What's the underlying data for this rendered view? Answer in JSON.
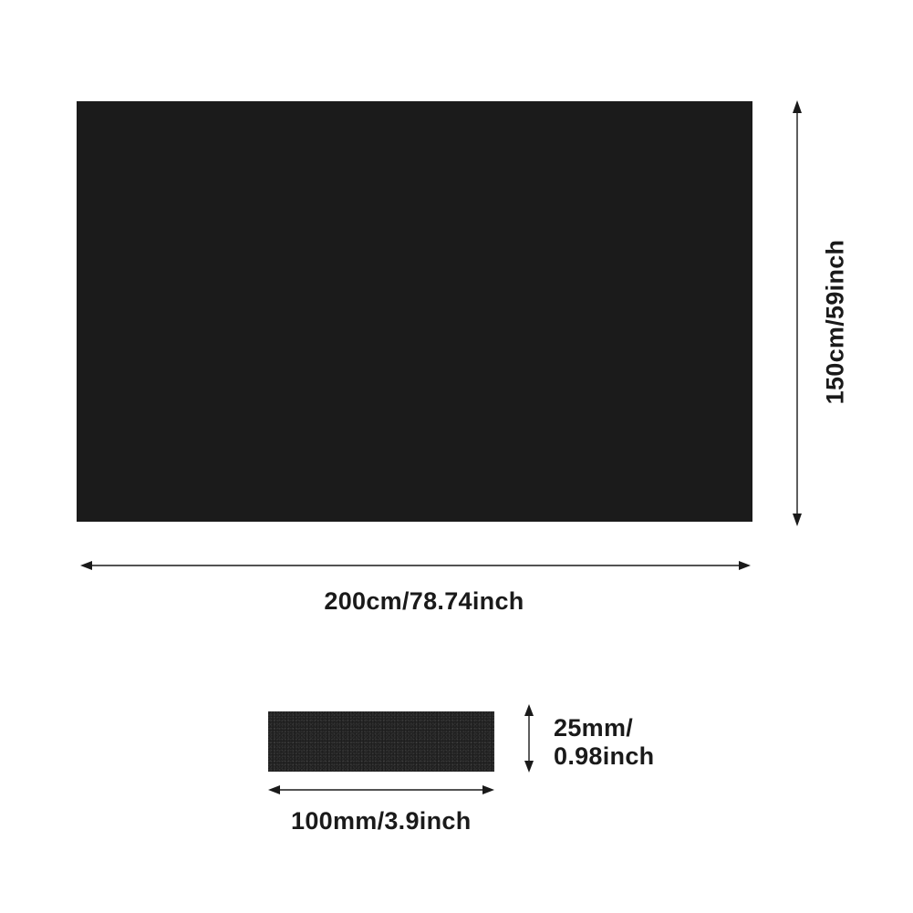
{
  "large_sheet": {
    "color": "#1b1b1b",
    "width_label": "200cm/78.74inch",
    "height_label": "150cm/59inch"
  },
  "small_sponge": {
    "color": "#1e1e1e",
    "width_label": "100mm/3.9inch",
    "height_label_line1": "25mm/",
    "height_label_line2": "0.98inch"
  }
}
